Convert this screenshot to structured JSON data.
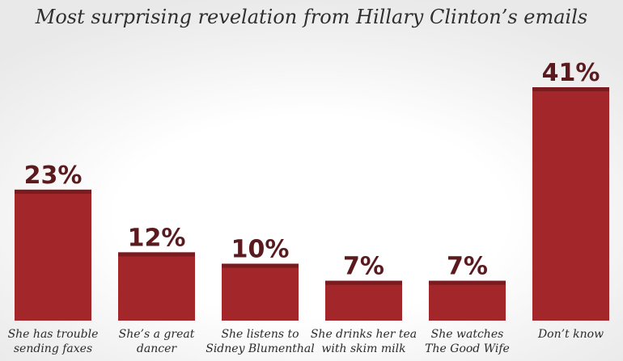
{
  "chart_data": {
    "type": "bar",
    "title": "Most surprising revelation from Hillary Clinton’s emails",
    "categories": [
      [
        "She has trouble",
        "sending faxes"
      ],
      [
        "She’s a great",
        "dancer"
      ],
      [
        "She listens to",
        "Sidney Blumenthal"
      ],
      [
        "She drinks her tea",
        "with skim milk"
      ],
      [
        "She watches",
        "The Good Wife"
      ],
      [
        "Don’t know"
      ]
    ],
    "values": [
      23,
      12,
      10,
      7,
      7,
      41
    ],
    "data_labels": [
      "23%",
      "12%",
      "10%",
      "7%",
      "7%",
      "41%"
    ],
    "unit": "%",
    "xlabel": "",
    "ylabel": "",
    "ylim": [
      0,
      41
    ],
    "grid": false,
    "legend": "none",
    "colors": {
      "bar": "#a3262a",
      "bar_top": "#7a1b1f",
      "label": "#5a1a1e",
      "title": "#2f2f2f"
    }
  }
}
